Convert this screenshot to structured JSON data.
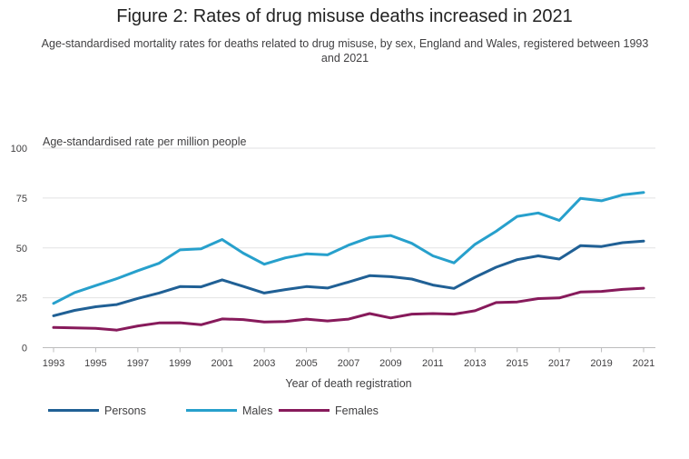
{
  "title": "Figure 2: Rates of drug misuse deaths increased in 2021",
  "subtitle": "Age-standardised mortality rates for deaths related to drug misuse, by sex, England and Wales, registered between 1993 and 2021",
  "chart_data": {
    "type": "line",
    "ylabel": "Age-standardised rate per million people",
    "xlabel": "Year of death registration",
    "ylim": [
      0,
      100
    ],
    "yticks": [
      0,
      25,
      50,
      75,
      100
    ],
    "xticks": [
      1993,
      1995,
      1997,
      1999,
      2001,
      2003,
      2005,
      2007,
      2009,
      2011,
      2013,
      2015,
      2017,
      2019,
      2021
    ],
    "grid": "horizontal",
    "legend_position": "bottom",
    "x": [
      1993,
      1994,
      1995,
      1996,
      1997,
      1998,
      1999,
      2000,
      2001,
      2002,
      2003,
      2004,
      2005,
      2006,
      2007,
      2008,
      2009,
      2010,
      2011,
      2012,
      2013,
      2014,
      2015,
      2016,
      2017,
      2018,
      2019,
      2020,
      2021
    ],
    "series": [
      {
        "name": "Persons",
        "color": "#206095",
        "values": [
          16.0,
          18.7,
          20.5,
          21.6,
          24.7,
          27.4,
          30.6,
          30.5,
          34.0,
          30.7,
          27.4,
          29.1,
          30.6,
          29.9,
          32.9,
          36.1,
          35.6,
          34.4,
          31.4,
          29.7,
          35.3,
          40.3,
          44.1,
          46.0,
          44.4,
          51.1,
          50.7,
          52.6,
          53.4
        ]
      },
      {
        "name": "Males",
        "color": "#27a0cc",
        "values": [
          22.2,
          27.6,
          31.1,
          34.6,
          38.6,
          42.3,
          49.0,
          49.5,
          54.2,
          47.4,
          41.8,
          45.0,
          47.0,
          46.5,
          51.4,
          55.2,
          56.2,
          52.3,
          46.0,
          42.5,
          51.8,
          58.3,
          65.8,
          67.5,
          63.8,
          74.8,
          73.6,
          76.6,
          77.8
        ]
      },
      {
        "name": "Females",
        "color": "#871a5b",
        "values": [
          10.1,
          9.9,
          9.7,
          8.8,
          10.9,
          12.4,
          12.5,
          11.5,
          14.4,
          14.1,
          12.9,
          13.1,
          14.3,
          13.4,
          14.3,
          17.1,
          14.9,
          16.8,
          17.1,
          16.8,
          18.5,
          22.6,
          22.9,
          24.6,
          24.9,
          27.9,
          28.2,
          29.2,
          29.8
        ]
      }
    ]
  }
}
